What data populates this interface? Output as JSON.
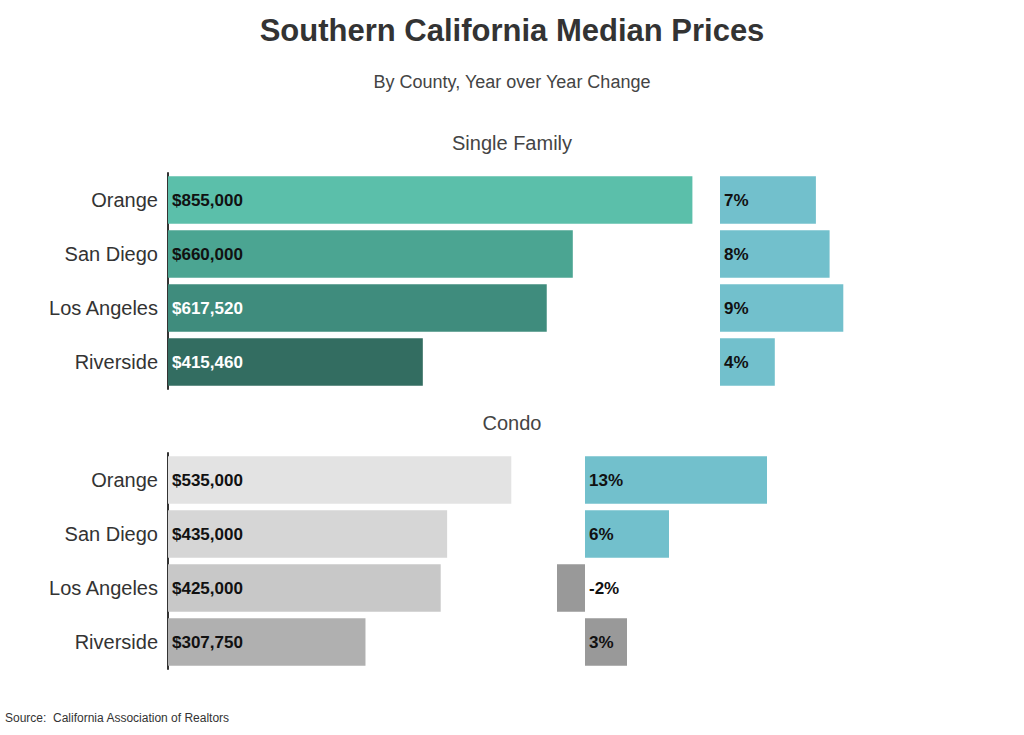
{
  "title": "Southern California Median Prices",
  "subtitle": "By County, Year over Year Change",
  "source": "Source:  California Association of Realtors",
  "chart_data": [
    {
      "type": "bar",
      "title": "Single Family",
      "orientation": "horizontal",
      "categories": [
        "Orange",
        "San Diego",
        "Los Angeles",
        "Riverside"
      ],
      "values": [
        855000,
        660000,
        617520,
        415460
      ],
      "value_labels": [
        "$855,000",
        "$660,000",
        "$617,520",
        "$415,460"
      ],
      "colors": [
        "#5bbfaa",
        "#4ba592",
        "#3f8c7d",
        "#336d61"
      ],
      "xlim": [
        0,
        900000
      ],
      "grid": false,
      "data_labels": true,
      "tick_labels": "y"
    },
    {
      "type": "bar",
      "orientation": "horizontal",
      "categories": [
        "Orange",
        "San Diego",
        "Los Angeles",
        "Riverside"
      ],
      "values": [
        7,
        8,
        9,
        4
      ],
      "value_labels": [
        "7%",
        "8%",
        "9%",
        "4%"
      ],
      "colors": [
        "#72c0cc",
        "#72c0cc",
        "#72c0cc",
        "#72c0cc"
      ],
      "xlim": [
        0,
        10
      ],
      "grid": false,
      "data_labels": true,
      "tick_labels": false
    },
    {
      "type": "bar",
      "title": "Condo",
      "orientation": "horizontal",
      "categories": [
        "Orange",
        "San Diego",
        "Los Angeles",
        "Riverside"
      ],
      "values": [
        535000,
        435000,
        425000,
        307750
      ],
      "value_labels": [
        "$535,000",
        "$435,000",
        "$425,000",
        "$307,750"
      ],
      "colors": [
        "#e3e3e3",
        "#d6d6d6",
        "#c8c8c8",
        "#b0b0b0"
      ],
      "xlim": [
        0,
        600000
      ],
      "grid": false,
      "data_labels": true,
      "tick_labels": "y"
    },
    {
      "type": "bar",
      "orientation": "horizontal",
      "categories": [
        "Orange",
        "San Diego",
        "Los Angeles",
        "Riverside"
      ],
      "values": [
        13,
        6,
        -2,
        3
      ],
      "value_labels": [
        "13%",
        "6%",
        "-2%",
        "3%"
      ],
      "colors": [
        "#72c0cc",
        "#72c0cc",
        "#999999",
        "#999999"
      ],
      "xlim": [
        -2,
        14
      ],
      "grid": false,
      "data_labels": true,
      "tick_labels": false
    }
  ]
}
